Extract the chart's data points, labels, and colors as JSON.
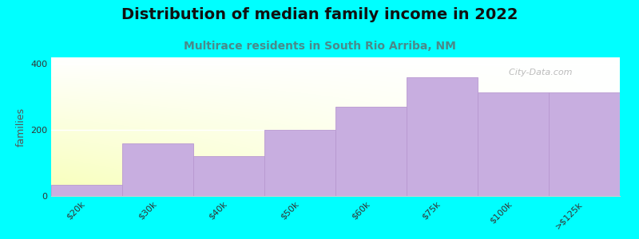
{
  "title": "Distribution of median family income in 2022",
  "subtitle": "Multirace residents in South Rio Arriba, NM",
  "categories": [
    "$20k",
    "$30k",
    "$40k",
    "$50k",
    "$60k",
    "$75k",
    "$100k",
    ">$125k"
  ],
  "values": [
    35,
    160,
    120,
    200,
    270,
    360,
    315,
    315
  ],
  "bar_color": "#c8aee0",
  "bar_edge_color": "#b898d0",
  "background_color": "#00ffff",
  "ylabel": "families",
  "ylim": [
    0,
    420
  ],
  "yticks": [
    0,
    200,
    400
  ],
  "title_fontsize": 14,
  "subtitle_fontsize": 10,
  "title_color": "#111111",
  "subtitle_color": "#4a8a8a",
  "watermark_text": "  City-Data.com",
  "watermark_color": "#b0b0b0",
  "grid_color": "#ffffff",
  "spine_color": "#cccccc"
}
